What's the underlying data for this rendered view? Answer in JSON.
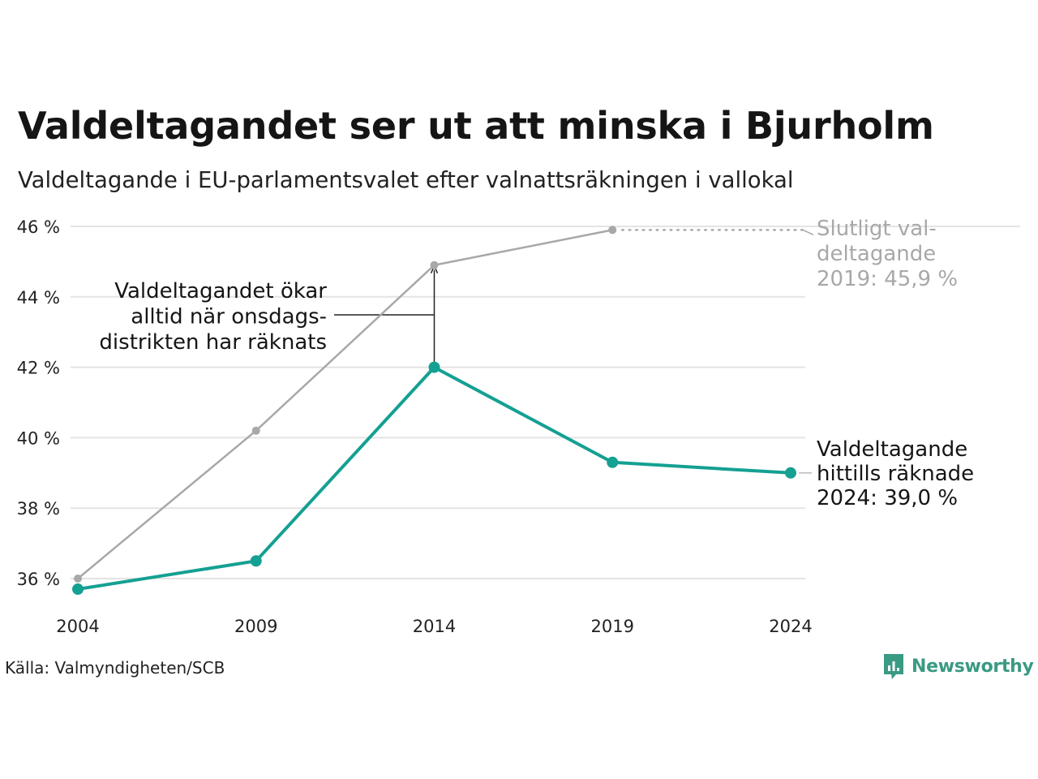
{
  "title": "Valdeltagandet ser ut att minska i Bjurholm",
  "subtitle": "Valdeltagande i EU-parlamentsvalet efter valnattsräkningen i vallokal",
  "source": "Källa: Valmyndigheten/SCB",
  "brand": "Newsworthy",
  "colors": {
    "counted": "#14a092",
    "final": "#a8a8a8",
    "grid": "#e4e4e4",
    "text": "#151515",
    "brand": "#3a9a84"
  },
  "chart_data": {
    "type": "line",
    "x": [
      2004,
      2009,
      2014,
      2019,
      2024
    ],
    "x_tick_labels": [
      "2004",
      "2009",
      "2014",
      "2019",
      "2024"
    ],
    "ylim": [
      35.3,
      46.3
    ],
    "y_ticks": [
      36,
      38,
      40,
      42,
      44,
      46
    ],
    "y_tick_labels": [
      "36 %",
      "38 %",
      "40 %",
      "42 %",
      "44 %",
      "46 %"
    ],
    "grid": "horizontal",
    "series": [
      {
        "key": "final",
        "color": "#a8a8a8",
        "x": [
          2004,
          2009,
          2014,
          2019
        ],
        "values": [
          36.0,
          40.2,
          44.9,
          45.9
        ]
      },
      {
        "key": "counted",
        "color": "#14a092",
        "x": [
          2004,
          2009,
          2014,
          2019,
          2024
        ],
        "values": [
          35.7,
          36.5,
          42.0,
          39.3,
          39.0
        ]
      }
    ],
    "annotations": {
      "final_label": [
        "Slutligt val-",
        "deltagande",
        "2019: 45,9 %"
      ],
      "counted_label": [
        "Valdeltagande",
        "hittills räknade",
        "2024: 39,0 %"
      ],
      "difference_note": [
        "Valdeltagandet ökar",
        "alltid när onsdags-",
        "distrikten har räknats"
      ]
    }
  }
}
